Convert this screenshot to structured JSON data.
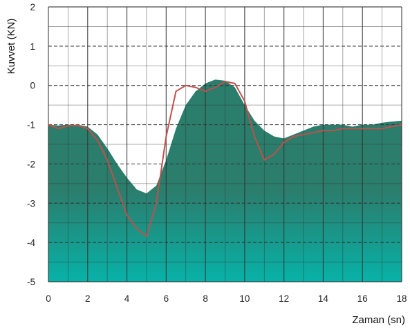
{
  "chart_data": {
    "type": "area",
    "title": "",
    "xlabel": "Zaman (sn)",
    "ylabel": "Kuvvet (KN)",
    "xlim": [
      0,
      18
    ],
    "ylim": [
      -5,
      2
    ],
    "x_ticks": [
      "0",
      "2",
      "4",
      "6",
      "8",
      "10",
      "12",
      "14",
      "16",
      "18"
    ],
    "y_ticks": [
      "2",
      "1",
      "0",
      "-1",
      "-2",
      "-3",
      "-4",
      "-5"
    ],
    "grid": true,
    "legend": "none",
    "colors": {
      "area_top": "#2b7d6c",
      "area_bottom": "#07b2a8",
      "line": "#c0504d",
      "grid": "#333333"
    },
    "series": [
      {
        "type": "area",
        "x": [
          0,
          0.5,
          1,
          1.5,
          2,
          2.5,
          3,
          3.5,
          4,
          4.5,
          5,
          5.5,
          6,
          6.5,
          7,
          7.5,
          8,
          8.5,
          9,
          9.5,
          10,
          10.5,
          11,
          11.5,
          12,
          12.5,
          13,
          13.5,
          14,
          14.5,
          15,
          15.5,
          16,
          16.5,
          17,
          17.5,
          18
        ],
        "values": [
          -1.0,
          -1.02,
          -1.0,
          -1.0,
          -1.05,
          -1.25,
          -1.6,
          -2.0,
          -2.35,
          -2.65,
          -2.75,
          -2.55,
          -1.9,
          -1.1,
          -0.5,
          -0.15,
          0.05,
          0.15,
          0.12,
          -0.05,
          -0.5,
          -0.9,
          -1.15,
          -1.3,
          -1.35,
          -1.25,
          -1.15,
          -1.05,
          -1.0,
          -1.0,
          -1.0,
          -1.05,
          -1.0,
          -1.0,
          -0.95,
          -0.92,
          -0.9
        ]
      },
      {
        "type": "line",
        "x": [
          0,
          0.5,
          1,
          1.5,
          2,
          2.5,
          3,
          3.5,
          4,
          4.5,
          5,
          5.5,
          6,
          6.5,
          7,
          7.5,
          8,
          8.5,
          9,
          9.5,
          10,
          10.5,
          11,
          11.5,
          12,
          12.5,
          13,
          13.5,
          14,
          14.5,
          15,
          15.5,
          16,
          16.5,
          17,
          17.5,
          18
        ],
        "values": [
          -1.0,
          -1.1,
          -1.03,
          -1.02,
          -1.1,
          -1.4,
          -1.9,
          -2.6,
          -3.3,
          -3.65,
          -3.85,
          -3.0,
          -1.3,
          -0.15,
          0.0,
          -0.05,
          -0.15,
          -0.05,
          0.1,
          0.05,
          -0.4,
          -1.3,
          -1.9,
          -1.75,
          -1.45,
          -1.3,
          -1.25,
          -1.2,
          -1.15,
          -1.15,
          -1.1,
          -1.1,
          -1.1,
          -1.1,
          -1.1,
          -1.05,
          -1.0
        ]
      }
    ]
  }
}
